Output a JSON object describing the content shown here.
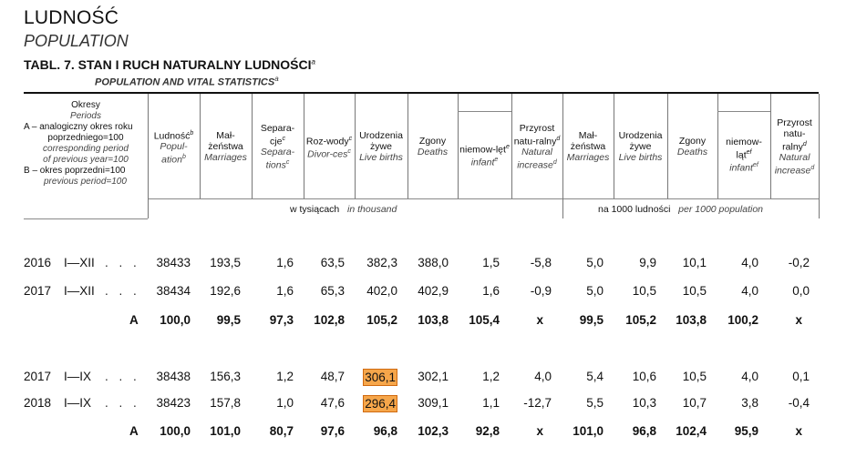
{
  "title_pl": "LUDNOŚĆ",
  "title_en": "POPULATION",
  "table_title": "TABL. 7.  STAN I RUCH NATURALNY LUDNOŚCI",
  "table_title_sup": "a",
  "table_subtitle": "POPULATION AND VITAL STATISTICS",
  "table_subtitle_sup": "a",
  "periods_header": {
    "l1": "Okresy",
    "l2": "Periods",
    "l3": "A – analogiczny okres roku",
    "l4": "poprzedniego=100",
    "l5": "corresponding period",
    "l6": "of previous year=100",
    "l7": "B – okres poprzedni=100",
    "l8": "previous period=100"
  },
  "columns": [
    {
      "pl": "Ludność",
      "sup_pl": "b",
      "en": "Popul-ation",
      "sup_en": "b"
    },
    {
      "pl": "Mał-żeństwa",
      "en": "Marriages"
    },
    {
      "pl": "Separa-cje",
      "sup_pl": "c",
      "en": "Separa-tions",
      "sup_en": "c"
    },
    {
      "pl": "Roz-wody",
      "sup_pl": "c",
      "en": "Divor-ces",
      "sup_en": "c"
    },
    {
      "pl": "Urodzenia żywe",
      "en": "Live births"
    },
    {
      "pl": "Zgony",
      "en": "Deaths"
    },
    {
      "pl": "niemow-lęt",
      "sup_pl": "e",
      "en": "infant",
      "sup_en": "e"
    },
    {
      "pl": "Przyrost natu-ralny",
      "sup_pl": "d",
      "en": "Natural increase",
      "sup_en": "d"
    },
    {
      "pl": "Mał-żeństwa",
      "en": "Marriages"
    },
    {
      "pl": "Urodzenia żywe",
      "en": "Live births"
    },
    {
      "pl": "Zgony",
      "en": "Deaths"
    },
    {
      "pl": "niemow-ląt",
      "sup_pl": "ef",
      "en": "infant",
      "sup_en": "ef"
    },
    {
      "pl": "Przyrost natu-ralny",
      "sup_pl": "d",
      "en": "Natural increase",
      "sup_en": "d"
    }
  ],
  "unit_thousand_pl": "w tysiącach",
  "unit_thousand_en": "in thousand",
  "unit_per1000_pl": "na 1000 ludności",
  "unit_per1000_en": "per 1000 population",
  "rows": [
    {
      "year": "2016",
      "period": "I—XII",
      "dots": ". . .",
      "values": [
        "38433",
        "193,5",
        "1,6",
        "63,5",
        "382,3",
        "388,0",
        "1,5",
        "-5,8",
        "5,0",
        "9,9",
        "10,1",
        "4,0",
        "-0,2"
      ]
    },
    {
      "year": "2017",
      "period": "I—XII",
      "dots": ". . .",
      "values": [
        "38434",
        "192,6",
        "1,6",
        "65,3",
        "402,0",
        "402,9",
        "1,6",
        "-0,9",
        "5,0",
        "10,5",
        "10,5",
        "4,0",
        "0,0"
      ]
    },
    {
      "label": "A",
      "bold": true,
      "values": [
        "100,0",
        "99,5",
        "97,3",
        "102,8",
        "105,2",
        "103,8",
        "105,4",
        "x",
        "99,5",
        "105,2",
        "103,8",
        "100,2",
        "x"
      ]
    },
    {
      "year": "2017",
      "period": "I—IX",
      "dots": ". . .",
      "values": [
        "38438",
        "156,3",
        "1,2",
        "48,7",
        "306,1",
        "302,1",
        "1,2",
        "4,0",
        "5,4",
        "10,6",
        "10,5",
        "4,0",
        "0,1"
      ]
    },
    {
      "year": "2018",
      "period": "I—IX",
      "dots": ". . .",
      "values": [
        "38423",
        "157,8",
        "1,0",
        "47,6",
        "296,4",
        "309,1",
        "1,1",
        "-12,7",
        "5,5",
        "10,3",
        "10,7",
        "3,8",
        "-0,4"
      ]
    },
    {
      "label": "A",
      "bold": true,
      "values": [
        "100,0",
        "101,0",
        "80,7",
        "97,6",
        "96,8",
        "102,3",
        "92,8",
        "x",
        "101,0",
        "96,8",
        "102,4",
        "95,9",
        "x"
      ]
    }
  ],
  "highlight_color": "#f6a64a"
}
